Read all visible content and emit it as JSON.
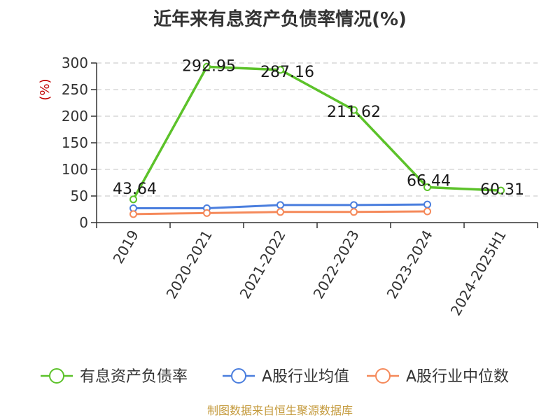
{
  "chart_data": {
    "type": "line",
    "title": "近年来有息资产负债率情况(%)",
    "ylabel": "(%)",
    "xlabel": "",
    "ylim": [
      0,
      300
    ],
    "yticks": [
      0,
      50,
      100,
      150,
      200,
      250,
      300
    ],
    "grid": true,
    "legend_position": "bottom",
    "categories": [
      "2019",
      "2020-2021",
      "2021-2022",
      "2022-2023",
      "2023-2024",
      "2024-2025H1"
    ],
    "series": [
      {
        "name": "有息资产负债率",
        "color": "#5cc22a",
        "values": [
          43.64,
          292.95,
          287.16,
          211.62,
          66.44,
          60.31
        ],
        "labels": [
          "43.64",
          "292.95",
          "287.16",
          "211.62",
          "66.44",
          "60.31"
        ]
      },
      {
        "name": "A股行业均值",
        "color": "#4a7ede",
        "values": [
          27,
          27,
          33,
          33,
          34,
          null
        ]
      },
      {
        "name": "A股行业中位数",
        "color": "#f5895a",
        "values": [
          16,
          18,
          20,
          20,
          21,
          null
        ]
      }
    ],
    "source": "制图数据来自恒生聚源数据库"
  }
}
